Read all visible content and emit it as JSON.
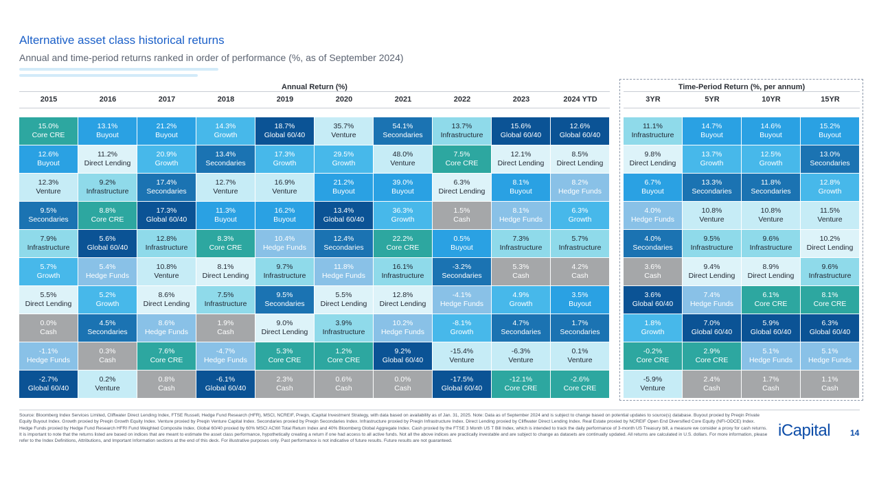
{
  "header": {
    "title": "Alternative asset class historical returns",
    "subtitle": "Annual and time-period returns ranked in order of performance (%, as of September 2024)"
  },
  "table": {
    "annual_header": "Annual Return (%)",
    "period_header": "Time-Period Return (%, per annum)",
    "columns": [
      "2015",
      "2016",
      "2017",
      "2018",
      "2019",
      "2020",
      "2021",
      "2022",
      "2023",
      "2024 YTD",
      "3YR",
      "5YR",
      "10YR",
      "15YR"
    ]
  },
  "colors": {
    "Core CRE": "#2da7a0",
    "Buyout": "#2aa1e3",
    "Growth": "#47b8ea",
    "Global 60/40": "#0b5395",
    "Venture": "#c6ecf6",
    "Secondaries": "#1b73b2",
    "Infrastructure": "#8fdaea",
    "Direct Lending": "#ddf3f9",
    "Hedge Funds": "#89c1e7",
    "Cash": "#a5a7a9"
  },
  "dark_text": [
    "Venture",
    "Infrastructure",
    "Direct Lending"
  ],
  "chart_data": {
    "type": "table",
    "title": "Alternative asset class historical returns",
    "columns": [
      "2015",
      "2016",
      "2017",
      "2018",
      "2019",
      "2020",
      "2021",
      "2022",
      "2023",
      "2024 YTD",
      "3YR",
      "5YR",
      "10YR",
      "15YR"
    ],
    "ranked_cells": [
      [
        {
          "value": "15.0%",
          "name": "Core CRE"
        },
        {
          "value": "12.6%",
          "name": "Buyout"
        },
        {
          "value": "12.3%",
          "name": "Venture"
        },
        {
          "value": "9.5%",
          "name": "Secondaries"
        },
        {
          "value": "7.9%",
          "name": "Infrastructure"
        },
        {
          "value": "5.7%",
          "name": "Growth"
        },
        {
          "value": "5.5%",
          "name": "Direct Lending"
        },
        {
          "value": "0.0%",
          "name": "Cash"
        },
        {
          "value": "-1.1%",
          "name": "Hedge Funds"
        },
        {
          "value": "-2.7%",
          "name": "Global 60/40"
        }
      ],
      [
        {
          "value": "13.1%",
          "name": "Buyout"
        },
        {
          "value": "11.2%",
          "name": "Direct Lending"
        },
        {
          "value": "9.2%",
          "name": "Infrastructure"
        },
        {
          "value": "8.8%",
          "name": "Core CRE"
        },
        {
          "value": "5.6%",
          "name": "Global 60/40"
        },
        {
          "value": "5.4%",
          "name": "Hedge Funds"
        },
        {
          "value": "5.2%",
          "name": "Growth"
        },
        {
          "value": "4.5%",
          "name": "Secondaries"
        },
        {
          "value": "0.3%",
          "name": "Cash"
        },
        {
          "value": "0.2%",
          "name": "Venture"
        }
      ],
      [
        {
          "value": "21.2%",
          "name": "Buyout"
        },
        {
          "value": "20.9%",
          "name": "Growth"
        },
        {
          "value": "17.4%",
          "name": "Secondaries"
        },
        {
          "value": "17.3%",
          "name": "Global 60/40"
        },
        {
          "value": "12.8%",
          "name": "Infrastructure"
        },
        {
          "value": "10.8%",
          "name": "Venture"
        },
        {
          "value": "8.6%",
          "name": "Direct Lending"
        },
        {
          "value": "8.6%",
          "name": "Hedge Funds"
        },
        {
          "value": "7.6%",
          "name": "Core CRE"
        },
        {
          "value": "0.8%",
          "name": "Cash"
        }
      ],
      [
        {
          "value": "14.3%",
          "name": "Growth"
        },
        {
          "value": "13.4%",
          "name": "Secondaries"
        },
        {
          "value": "12.7%",
          "name": "Venture"
        },
        {
          "value": "11.3%",
          "name": "Buyout"
        },
        {
          "value": "8.3%",
          "name": "Core CRE"
        },
        {
          "value": "8.1%",
          "name": "Direct Lending"
        },
        {
          "value": "7.5%",
          "name": "Infrastructure"
        },
        {
          "value": "1.9%",
          "name": "Cash"
        },
        {
          "value": "-4.7%",
          "name": "Hedge Funds"
        },
        {
          "value": "-6.1%",
          "name": "Global 60/40"
        }
      ],
      [
        {
          "value": "18.7%",
          "name": "Global 60/40"
        },
        {
          "value": "17.3%",
          "name": "Growth"
        },
        {
          "value": "16.9%",
          "name": "Venture"
        },
        {
          "value": "16.2%",
          "name": "Buyout"
        },
        {
          "value": "10.4%",
          "name": "Hedge Funds"
        },
        {
          "value": "9.7%",
          "name": "Infrastructure"
        },
        {
          "value": "9.5%",
          "name": "Secondaries"
        },
        {
          "value": "9.0%",
          "name": "Direct Lending"
        },
        {
          "value": "5.3%",
          "name": "Core CRE"
        },
        {
          "value": "2.3%",
          "name": "Cash"
        }
      ],
      [
        {
          "value": "35.7%",
          "name": "Venture"
        },
        {
          "value": "29.5%",
          "name": "Growth"
        },
        {
          "value": "21.2%",
          "name": "Buyout"
        },
        {
          "value": "13.4%",
          "name": "Global 60/40"
        },
        {
          "value": "12.4%",
          "name": "Secondaries"
        },
        {
          "value": "11.8%",
          "name": "Hedge Funds"
        },
        {
          "value": "5.5%",
          "name": "Direct Lending"
        },
        {
          "value": "3.9%",
          "name": "Infrastructure"
        },
        {
          "value": "1.2%",
          "name": "Core CRE"
        },
        {
          "value": "0.6%",
          "name": "Cash"
        }
      ],
      [
        {
          "value": "54.1%",
          "name": "Secondaries"
        },
        {
          "value": "48.0%",
          "name": "Venture"
        },
        {
          "value": "39.0%",
          "name": "Buyout"
        },
        {
          "value": "36.3%",
          "name": "Growth"
        },
        {
          "value": "22.2%",
          "name": "Core CRE"
        },
        {
          "value": "16.1%",
          "name": "Infrastructure"
        },
        {
          "value": "12.8%",
          "name": "Direct Lending"
        },
        {
          "value": "10.2%",
          "name": "Hedge Funds"
        },
        {
          "value": "9.2%",
          "name": "Global 60/40"
        },
        {
          "value": "0.0%",
          "name": "Cash"
        }
      ],
      [
        {
          "value": "13.7%",
          "name": "Infrastructure"
        },
        {
          "value": "7.5%",
          "name": "Core CRE"
        },
        {
          "value": "6.3%",
          "name": "Direct Lending"
        },
        {
          "value": "1.5%",
          "name": "Cash"
        },
        {
          "value": "0.5%",
          "name": "Buyout"
        },
        {
          "value": "-3.2%",
          "name": "Secondaries"
        },
        {
          "value": "-4.1%",
          "name": "Hedge Funds"
        },
        {
          "value": "-8.1%",
          "name": "Growth"
        },
        {
          "value": "-15.4%",
          "name": "Venture"
        },
        {
          "value": "-17.5%",
          "name": "Global 60/40"
        }
      ],
      [
        {
          "value": "15.6%",
          "name": "Global 60/40"
        },
        {
          "value": "12.1%",
          "name": "Direct Lending"
        },
        {
          "value": "8.1%",
          "name": "Buyout"
        },
        {
          "value": "8.1%",
          "name": "Hedge Funds"
        },
        {
          "value": "7.3%",
          "name": "Infrastructure"
        },
        {
          "value": "5.3%",
          "name": "Cash"
        },
        {
          "value": "4.9%",
          "name": "Growth"
        },
        {
          "value": "4.7%",
          "name": "Secondaries"
        },
        {
          "value": "-6.3%",
          "name": "Venture"
        },
        {
          "value": "-12.1%",
          "name": "Core CRE"
        }
      ],
      [
        {
          "value": "12.6%",
          "name": "Global 60/40"
        },
        {
          "value": "8.5%",
          "name": "Direct Lending"
        },
        {
          "value": "8.2%",
          "name": "Hedge Funds"
        },
        {
          "value": "6.3%",
          "name": "Growth"
        },
        {
          "value": "5.7%",
          "name": "Infrastructure"
        },
        {
          "value": "4.2%",
          "name": "Cash"
        },
        {
          "value": "3.5%",
          "name": "Buyout"
        },
        {
          "value": "1.7%",
          "name": "Secondaries"
        },
        {
          "value": "0.1%",
          "name": "Venture"
        },
        {
          "value": "-2.6%",
          "name": "Core CRE"
        }
      ],
      [
        {
          "value": "11.1%",
          "name": "Infrastructure"
        },
        {
          "value": "9.8%",
          "name": "Direct Lending"
        },
        {
          "value": "6.7%",
          "name": "Buyout"
        },
        {
          "value": "4.0%",
          "name": "Hedge Funds"
        },
        {
          "value": "4.0%",
          "name": "Secondaries"
        },
        {
          "value": "3.6%",
          "name": "Cash"
        },
        {
          "value": "3.6%",
          "name": "Global 60/40"
        },
        {
          "value": "1.8%",
          "name": "Growth"
        },
        {
          "value": "-0.2%",
          "name": "Core CRE"
        },
        {
          "value": "-5.9%",
          "name": "Venture"
        }
      ],
      [
        {
          "value": "14.7%",
          "name": "Buyout"
        },
        {
          "value": "13.7%",
          "name": "Growth"
        },
        {
          "value": "13.3%",
          "name": "Secondaries"
        },
        {
          "value": "10.8%",
          "name": "Venture"
        },
        {
          "value": "9.5%",
          "name": "Infrastructure"
        },
        {
          "value": "9.4%",
          "name": "Direct Lending"
        },
        {
          "value": "7.4%",
          "name": "Hedge Funds"
        },
        {
          "value": "7.0%",
          "name": "Global 60/40"
        },
        {
          "value": "2.9%",
          "name": "Core CRE"
        },
        {
          "value": "2.4%",
          "name": "Cash"
        }
      ],
      [
        {
          "value": "14.6%",
          "name": "Buyout"
        },
        {
          "value": "12.5%",
          "name": "Growth"
        },
        {
          "value": "11.8%",
          "name": "Secondaries"
        },
        {
          "value": "10.8%",
          "name": "Venture"
        },
        {
          "value": "9.6%",
          "name": "Infrastructure"
        },
        {
          "value": "8.9%",
          "name": "Direct Lending"
        },
        {
          "value": "6.1%",
          "name": "Core CRE"
        },
        {
          "value": "5.9%",
          "name": "Global 60/40"
        },
        {
          "value": "5.1%",
          "name": "Hedge Funds"
        },
        {
          "value": "1.7%",
          "name": "Cash"
        }
      ],
      [
        {
          "value": "15.2%",
          "name": "Buyout"
        },
        {
          "value": "13.0%",
          "name": "Secondaries"
        },
        {
          "value": "12.8%",
          "name": "Growth"
        },
        {
          "value": "11.5%",
          "name": "Venture"
        },
        {
          "value": "10.2%",
          "name": "Direct Lending"
        },
        {
          "value": "9.6%",
          "name": "Infrastructure"
        },
        {
          "value": "8.1%",
          "name": "Core CRE"
        },
        {
          "value": "6.3%",
          "name": "Global 60/40"
        },
        {
          "value": "5.1%",
          "name": "Hedge Funds"
        },
        {
          "value": "1.1%",
          "name": "Cash"
        }
      ]
    ]
  },
  "footer": {
    "source": "Source: Bloomberg Index Services Limited, Cliffwater Direct Lending Index, FTSE Russell, Hedge Fund Research (HFR), MSCI, NCREIF, Preqin, iCapital Investment Strategy, with data based on availability as of Jan. 31, 2025. Note: Data as of September 2024 and is subject to change based on potential updates to source(s) database. Buyout proxied by Preqin Private Equity Buyout Index. Growth proxied by Preqin Growth Equity Index. Venture proxied by Preqin Venture Capital Index. Secondaries proxied by Preqin Secondaries Index. Infrastructure proxied by Preqin Infrastructure Index. Direct Lending proxied by Cliffwater Direct Lending Index. Real Estate proxied by NCREIF Open End Diversified Core Equity (NFI-ODCE) Index. Hedge Funds proxied by Hedge Fund Research HFRI Fund Weighted Composite Index. Global 60/40 proxied by 60% MSCI ACWI Total Return Index and 40% Bloomberg Global Aggregate Index. Cash proxied by the FTSE 3 Month US T Bill Index, which is intended to track the daily performance of 3-month US Treasury bill, a measure we consider a proxy for cash returns. It is important to note that the returns listed are based on indices that are meant to estimate the asset class performance, hypothetically creating a return if one had access to all active funds. Not all the above indices are practically investable and are subject to change as datasets are continually updated. All returns are calculated in U.S. dollars. For more information, please refer to the Index Definitions, Attributions, and Important Information sections at the end of this deck. For illustrative purposes only. Past performance is not indicative of future results. Future results are not guaranteed.",
    "logo": "iCapital",
    "page_number": "14"
  }
}
